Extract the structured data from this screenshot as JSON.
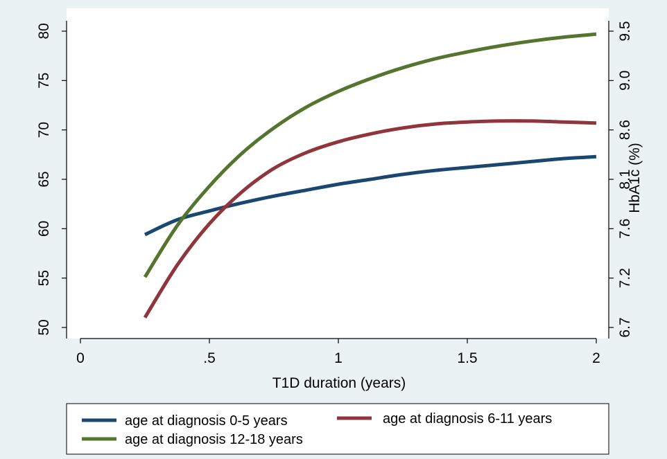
{
  "chart_data": {
    "type": "line",
    "xlabel": "T1D duration (years)",
    "y2label": "HbA1c (%)",
    "xlim": [
      0,
      2
    ],
    "ylim": [
      50,
      80
    ],
    "x_ticks": [
      {
        "value": 0,
        "label": "0"
      },
      {
        "value": 0.5,
        "label": ".5"
      },
      {
        "value": 1,
        "label": "1"
      },
      {
        "value": 1.5,
        "label": "1.5"
      },
      {
        "value": 2,
        "label": "2"
      }
    ],
    "y_ticks": [
      {
        "value": 50,
        "label": "50"
      },
      {
        "value": 55,
        "label": "55"
      },
      {
        "value": 60,
        "label": "60"
      },
      {
        "value": 65,
        "label": "65"
      },
      {
        "value": 70,
        "label": "70"
      },
      {
        "value": 75,
        "label": "75"
      },
      {
        "value": 80,
        "label": "80"
      }
    ],
    "y2_ticks": [
      {
        "value": 50,
        "label": "6.7"
      },
      {
        "value": 55,
        "label": "7.2"
      },
      {
        "value": 60,
        "label": "7.6"
      },
      {
        "value": 65,
        "label": "8.1"
      },
      {
        "value": 70,
        "label": "8.6"
      },
      {
        "value": 75,
        "label": "9.0"
      },
      {
        "value": 80,
        "label": "9.5"
      }
    ],
    "grid": false,
    "legend_position": "bottom",
    "x": [
      0.25,
      0.375,
      0.5,
      0.625,
      0.75,
      0.875,
      1.0,
      1.125,
      1.25,
      1.375,
      1.5,
      1.625,
      1.75,
      1.875,
      2.0
    ],
    "series": [
      {
        "name": "age at diagnosis 0-5 years",
        "color": "#1a476f",
        "values": [
          59.4,
          60.9,
          61.8,
          62.6,
          63.3,
          63.9,
          64.5,
          65.0,
          65.5,
          65.9,
          66.2,
          66.5,
          66.8,
          67.1,
          67.3
        ]
      },
      {
        "name": "age at diagnosis 6-11 years",
        "color": "#90353b",
        "values": [
          51.0,
          56.3,
          60.5,
          63.7,
          66.1,
          67.7,
          68.8,
          69.6,
          70.2,
          70.6,
          70.8,
          70.9,
          70.9,
          70.8,
          70.7
        ]
      },
      {
        "name": "age at diagnosis 12-18 years",
        "color": "#55752f",
        "values": [
          55.1,
          60.3,
          64.3,
          67.6,
          70.2,
          72.3,
          73.9,
          75.2,
          76.3,
          77.2,
          77.9,
          78.5,
          79.0,
          79.4,
          79.7
        ]
      }
    ]
  }
}
